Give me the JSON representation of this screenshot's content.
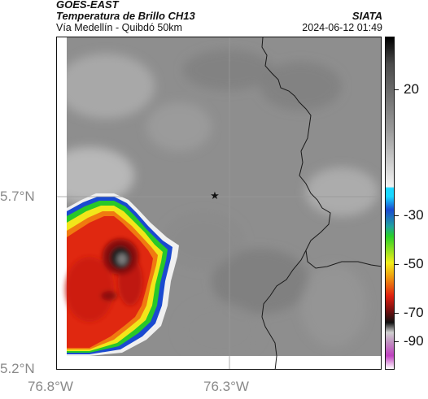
{
  "header": {
    "satellite": "GOES-EAST",
    "product": "Temperatura de Brillo CH13",
    "organization": "SIATA",
    "route": "Vía Medellín - Quibdó 50km",
    "timestamp": "2024-06-12 01:49"
  },
  "map": {
    "lat_labels": [
      "5.7°N",
      "5.2°N"
    ],
    "lon_labels": [
      "76.8°W",
      "76.3°W"
    ],
    "marker": "star-icon"
  },
  "colorbar": {
    "labels": [
      "20",
      "-30",
      "-50",
      "-70",
      "-90"
    ],
    "colors": {
      "warm": "#6e6e6e",
      "cold_cyan": "#1ad7ff",
      "blue": "#1a4ad0",
      "green": "#28d028",
      "yellow": "#f2ee1a",
      "red": "#e02010",
      "black": "#101010",
      "magenta": "#c040c0"
    }
  }
}
